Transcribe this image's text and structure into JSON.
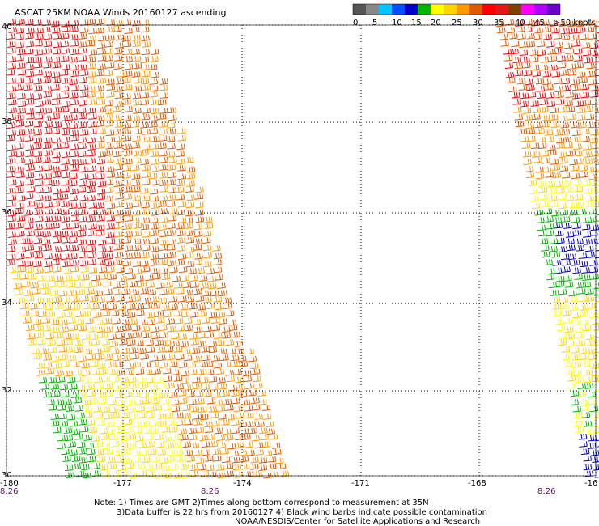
{
  "title": "ASCAT 25KM NOAA Winds 20160127 ascending",
  "legend": {
    "colors": [
      "#555555",
      "#888888",
      "#00c8ff",
      "#0050ff",
      "#0000c8",
      "#00b400",
      "#ffff00",
      "#ffd700",
      "#ff9900",
      "#e05a00",
      "#ff0000",
      "#e01818",
      "#804000",
      "#ff00ff",
      "#b000ff",
      "#6a00c8"
    ],
    "labels": [
      "0",
      "5",
      "10",
      "15",
      "20",
      "25",
      "30",
      "35",
      "40",
      "45",
      ">50 knots"
    ]
  },
  "axes": {
    "lon_labels": [
      "-180",
      "-177",
      "-174",
      "-171",
      "-168",
      "-16"
    ],
    "lat_labels": [
      "40",
      "38",
      "36",
      "34",
      "32",
      "30"
    ]
  },
  "time_labels": [
    "8:26",
    "8:26",
    "8:26"
  ],
  "notes": {
    "line1": "Note: 1) Times are GMT 2)Times along bottom correspond to measurement at 35N",
    "line2": "3)Data buffer is 22 hrs from 20160127 4) Black wind barbs indicate possible contamination",
    "line3": "NOAA/NESDIS/Center for Satellite Applications and Research"
  },
  "swaths": {
    "left": {
      "fill_colors": [
        "#ff9900",
        "#e05a00",
        "#ff0000",
        "#e01818",
        "#ffd700",
        "#ffff00",
        "#00b400"
      ]
    },
    "right": {
      "fill_colors": [
        "#e05a00",
        "#ff9900",
        "#ffd700",
        "#ffff00",
        "#00b400",
        "#0000c8",
        "#ff0000"
      ]
    }
  }
}
